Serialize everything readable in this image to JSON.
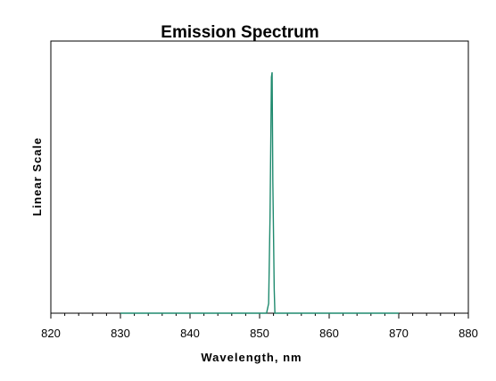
{
  "chart_data": {
    "type": "line",
    "title": "Emission Spectrum",
    "xlabel": "Wavelength, nm",
    "ylabel": "Linear Scale",
    "xlim": [
      820,
      880
    ],
    "ylim": [
      0,
      1.0
    ],
    "x_ticks": [
      "820",
      "830",
      "840",
      "850",
      "860",
      "870",
      "880"
    ],
    "y_tick_labels_shown": false,
    "grid": false,
    "legend": "none",
    "series": [
      {
        "color": "#1f8a6e",
        "points": [
          [
            830.0,
            0.0
          ],
          [
            851.0,
            0.0
          ],
          [
            851.3,
            0.04
          ],
          [
            851.5,
            0.4
          ],
          [
            851.7,
            0.98
          ],
          [
            851.8,
            1.0
          ],
          [
            851.9,
            0.55
          ],
          [
            852.0,
            0.33
          ],
          [
            852.1,
            0.1
          ],
          [
            852.2,
            0.0
          ],
          [
            870.0,
            0.0
          ]
        ]
      }
    ]
  }
}
